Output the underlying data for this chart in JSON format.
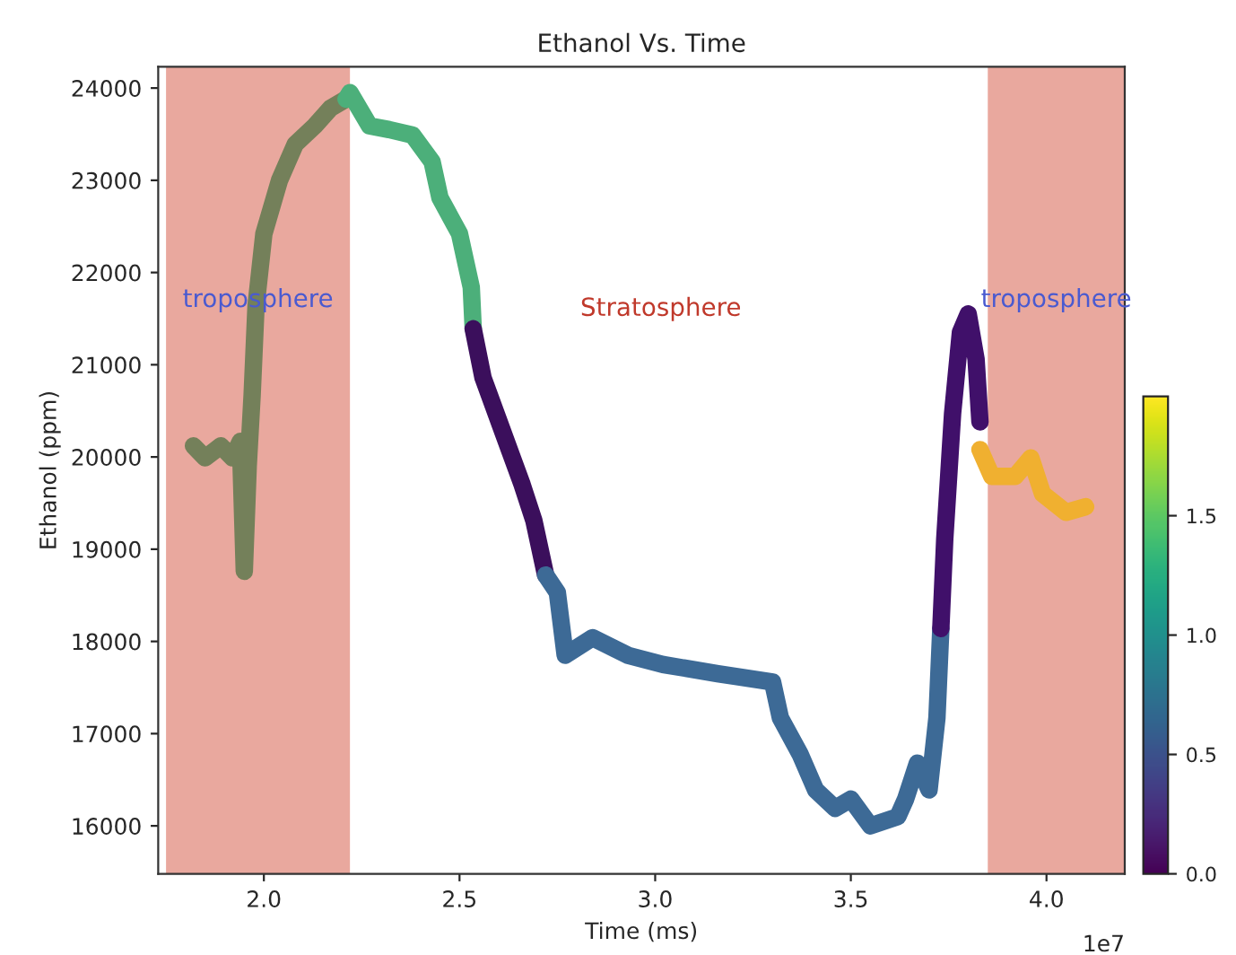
{
  "chart_data": {
    "type": "line",
    "title": "Ethanol Vs. Time",
    "xlabel": "Time (ms)",
    "ylabel": "Ethanol (ppm)",
    "xlim": [
      1.73,
      4.2
    ],
    "ylim": [
      15480,
      24230
    ],
    "xticks": [
      {
        "value": 2,
        "label": "2.0"
      },
      2.5,
      {
        "value": 3,
        "label": "3.0"
      },
      3.5,
      {
        "value": 4,
        "label": "4.0"
      }
    ],
    "yticks": [
      16000,
      17000,
      18000,
      19000,
      20000,
      21000,
      22000,
      23000,
      24000
    ],
    "grid": false,
    "legend": false,
    "line_style": "solid",
    "marker": "none",
    "clim": [
      0,
      2
    ],
    "cticks": [
      {
        "value": 0,
        "label": "0.0"
      },
      {
        "value": 0.5,
        "label": "0.5"
      },
      {
        "value": 1.0,
        "label": "1.0"
      },
      {
        "value": 1.5,
        "label": "1.5"
      }
    ],
    "bands": [
      {
        "axis": "x",
        "from": 1.75,
        "to": 2.22,
        "label": "troposphere",
        "color": "#e9a89e"
      },
      {
        "axis": "x",
        "from": 3.85,
        "to": 4.2,
        "label": "troposphere",
        "color": "#e9a89e"
      }
    ],
    "annotations": [
      "Stratosphere",
      "1e7"
    ],
    "series": [
      {
        "color": "#74805a",
        "x": [
          1.82,
          1.85,
          1.89,
          1.92,
          1.94,
          1.95,
          1.96,
          1.97,
          1.98,
          2.0,
          2.04,
          2.08,
          2.13,
          2.17,
          2.21
        ],
        "values": [
          20120,
          19990,
          20120,
          19990,
          20170,
          18760,
          19900,
          20670,
          21640,
          22420,
          23000,
          23390,
          23590,
          23780,
          23880
        ]
      },
      {
        "color": "#4caf7a",
        "x": [
          2.21,
          2.22,
          2.27,
          2.32,
          2.38,
          2.43,
          2.45,
          2.5,
          2.53,
          2.535
        ],
        "values": [
          23880,
          23950,
          23590,
          23550,
          23490,
          23200,
          22810,
          22420,
          21840,
          21390
        ]
      },
      {
        "color": "#3b0f5c",
        "x": [
          2.535,
          2.56,
          2.61,
          2.66,
          2.69,
          2.72
        ],
        "values": [
          21390,
          20860,
          20280,
          19700,
          19310,
          18720
        ]
      },
      {
        "color": "#3d6a96",
        "x": [
          2.72,
          2.75,
          2.77,
          2.84,
          2.93,
          3.02,
          3.16,
          3.3,
          3.32,
          3.37,
          3.41,
          3.46,
          3.5,
          3.55,
          3.62,
          3.64,
          3.67,
          3.7,
          3.72,
          3.73
        ],
        "values": [
          18720,
          18530,
          17850,
          18040,
          17850,
          17750,
          17650,
          17560,
          17170,
          16780,
          16390,
          16190,
          16290,
          16000,
          16100,
          16290,
          16680,
          16390,
          17170,
          18140
        ]
      },
      {
        "color": "#40106a",
        "x": [
          3.73,
          3.74,
          3.76,
          3.78,
          3.8,
          3.82,
          3.83
        ],
        "values": [
          18140,
          19110,
          20470,
          21350,
          21550,
          21060,
          20380
        ]
      },
      {
        "color": "#f0b030",
        "x": [
          3.83,
          3.86,
          3.92,
          3.96,
          3.99,
          4.05,
          4.1
        ],
        "values": [
          20080,
          19790,
          19790,
          19990,
          19600,
          19400,
          19460
        ]
      }
    ]
  }
}
